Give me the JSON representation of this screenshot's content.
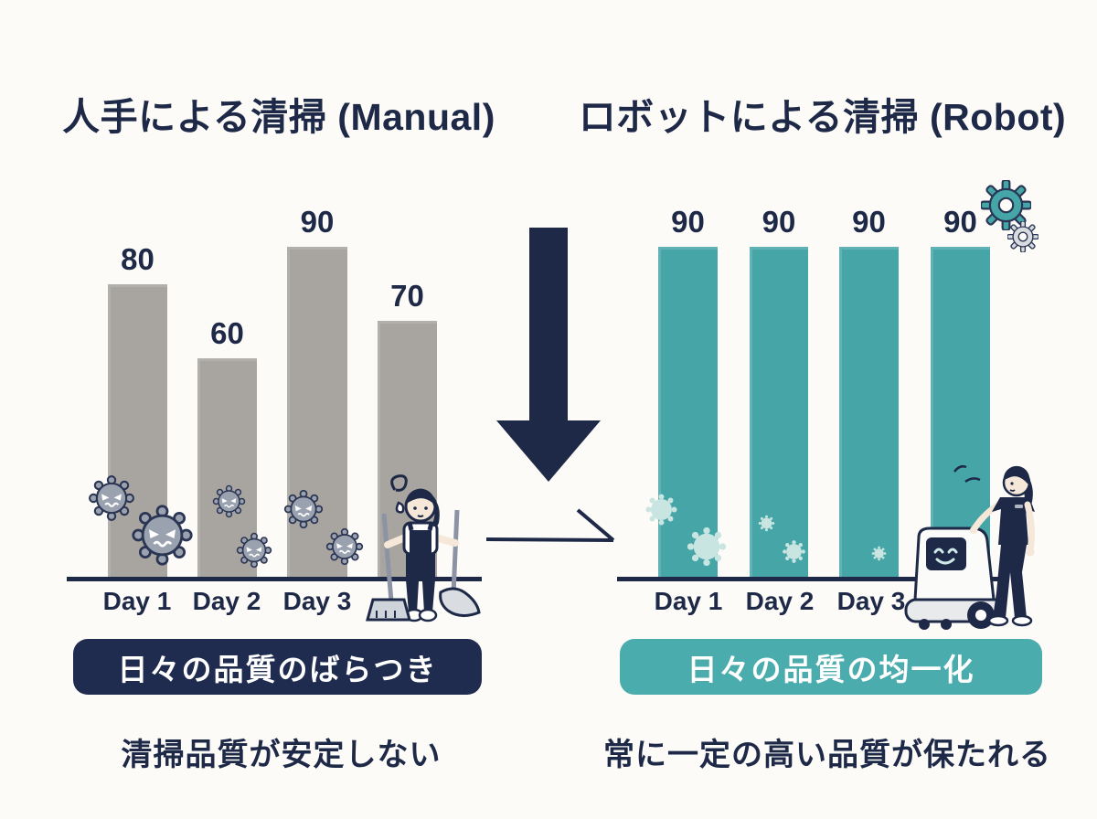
{
  "colors": {
    "background": "#fcfbf8",
    "navy": "#1e2948",
    "manual_bar": "#a8a5a1",
    "robot_bar": "#46a5a7",
    "robot_badge": "#4aacad",
    "germ_manual": "#9aa2af",
    "germ_robot": "#c9e5e2",
    "white": "#ffffff"
  },
  "manual": {
    "title": "人手による清掃 (Manual)",
    "badge": "日々の品質のばらつき",
    "caption": "清掃品質が安定しない",
    "bars": [
      {
        "label": "Day 1",
        "value": 80
      },
      {
        "label": "Day 2",
        "value": 60
      },
      {
        "label": "Day 3",
        "value": 90
      },
      {
        "label": "",
        "value": 70
      }
    ]
  },
  "robot": {
    "title": "ロボットによる清掃 (Robot)",
    "badge": "日々の品質の均一化",
    "caption": "常に一定の高い品質が保たれる",
    "bars": [
      {
        "label": "Day 1",
        "value": 90
      },
      {
        "label": "Day 2",
        "value": 90
      },
      {
        "label": "Day 3",
        "value": 90
      },
      {
        "label": "",
        "value": 90
      }
    ]
  },
  "icons": {
    "transition_arrow": "down-arrow-icon",
    "arrow_tail": "checkmark-line-icon",
    "gears": "gear-icon",
    "germ_manual": "angry-virus-icon",
    "germ_robot": "fading-virus-icon",
    "cleaner": "tired-cleaner-illustration",
    "robot_machine": "cleaning-robot-illustration",
    "staff": "staff-supervisor-illustration",
    "motion": "motion-dashes-icon"
  },
  "chart_data": [
    {
      "type": "bar",
      "title": "人手による清掃 (Manual)",
      "categories": [
        "Day 1",
        "Day 2",
        "Day 3",
        ""
      ],
      "values": [
        80,
        60,
        90,
        70
      ],
      "bar_color": "#a8a5a1",
      "value_labels": [
        80,
        60,
        90,
        70
      ],
      "xlabel": "",
      "ylabel": "",
      "ylim": [
        0,
        100
      ],
      "grid": false,
      "legend": "none",
      "annotations": [
        "日々の品質のばらつき",
        "清掃品質が安定しない"
      ]
    },
    {
      "type": "bar",
      "title": "ロボットによる清掃 (Robot)",
      "categories": [
        "Day 1",
        "Day 2",
        "Day 3",
        ""
      ],
      "values": [
        90,
        90,
        90,
        90
      ],
      "bar_color": "#46a5a7",
      "value_labels": [
        90,
        90,
        90,
        90
      ],
      "xlabel": "",
      "ylabel": "",
      "ylim": [
        0,
        100
      ],
      "grid": false,
      "legend": "none",
      "annotations": [
        "日々の品質の均一化",
        "常に一定の高い品質が保たれる"
      ]
    }
  ]
}
